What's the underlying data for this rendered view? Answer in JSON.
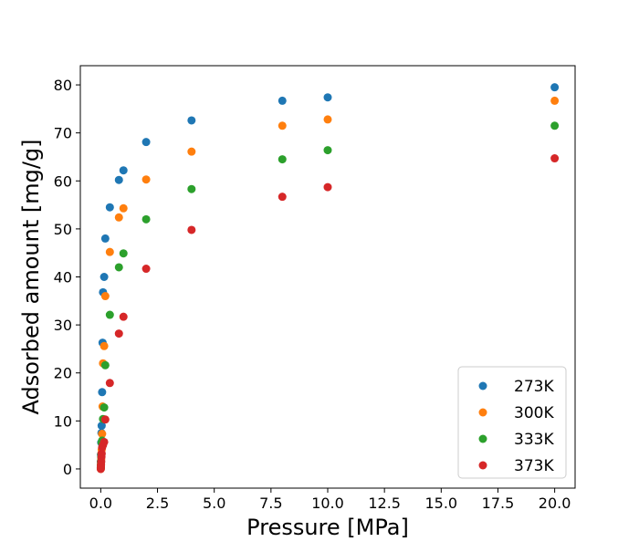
{
  "chart_data": {
    "type": "scatter",
    "xlabel": "Pressure [MPa]",
    "ylabel": "Adsorbed amount [mg/g]",
    "xlim": [
      -0.9,
      20.9
    ],
    "ylim": [
      -4,
      84
    ],
    "xticks": [
      0.0,
      2.5,
      5.0,
      7.5,
      10.0,
      12.5,
      15.0,
      17.5,
      20.0
    ],
    "xtick_labels": [
      "0.0",
      "2.5",
      "5.0",
      "7.5",
      "10.0",
      "12.5",
      "15.0",
      "17.5",
      "20.0"
    ],
    "yticks": [
      0,
      10,
      20,
      30,
      40,
      50,
      60,
      70,
      80
    ],
    "ytick_labels": [
      "0",
      "10",
      "20",
      "30",
      "40",
      "50",
      "60",
      "70",
      "80"
    ],
    "grid": false,
    "legend_position": "bottom-right",
    "series": [
      {
        "name": "273K",
        "color": "#1f77b4",
        "points": [
          [
            0.001,
            0.3
          ],
          [
            0.005,
            1.5
          ],
          [
            0.01,
            3.0
          ],
          [
            0.02,
            5.5
          ],
          [
            0.03,
            7.5
          ],
          [
            0.04,
            9.0
          ],
          [
            0.06,
            16.0
          ],
          [
            0.08,
            26.3
          ],
          [
            0.1,
            36.8
          ],
          [
            0.15,
            40.0
          ],
          [
            0.2,
            48.0
          ],
          [
            0.4,
            54.5
          ],
          [
            0.8,
            60.2
          ],
          [
            1.0,
            62.2
          ],
          [
            2.0,
            68.1
          ],
          [
            4.0,
            72.6
          ],
          [
            8.0,
            76.7
          ],
          [
            10.0,
            77.4
          ],
          [
            20.0,
            79.5
          ]
        ]
      },
      {
        "name": "300K",
        "color": "#ff7f0e",
        "points": [
          [
            0.001,
            0.0
          ],
          [
            0.005,
            0.5
          ],
          [
            0.01,
            1.0
          ],
          [
            0.02,
            2.0
          ],
          [
            0.03,
            3.2
          ],
          [
            0.04,
            4.0
          ],
          [
            0.06,
            7.3
          ],
          [
            0.08,
            13.0
          ],
          [
            0.1,
            22.0
          ],
          [
            0.15,
            25.6
          ],
          [
            0.2,
            36.0
          ],
          [
            0.4,
            45.2
          ],
          [
            0.8,
            52.4
          ],
          [
            1.0,
            54.3
          ],
          [
            2.0,
            60.3
          ],
          [
            4.0,
            66.1
          ],
          [
            8.0,
            71.5
          ],
          [
            10.0,
            72.8
          ],
          [
            20.0,
            76.7
          ]
        ]
      },
      {
        "name": "333K",
        "color": "#2ca02c",
        "points": [
          [
            0.001,
            0.2
          ],
          [
            0.005,
            0.8
          ],
          [
            0.01,
            1.5
          ],
          [
            0.02,
            2.5
          ],
          [
            0.03,
            3.0
          ],
          [
            0.04,
            5.5
          ],
          [
            0.06,
            5.9
          ],
          [
            0.1,
            10.4
          ],
          [
            0.15,
            12.8
          ],
          [
            0.2,
            21.6
          ],
          [
            0.4,
            32.1
          ],
          [
            0.8,
            42.0
          ],
          [
            1.0,
            44.9
          ],
          [
            2.0,
            52.0
          ],
          [
            4.0,
            58.3
          ],
          [
            8.0,
            64.5
          ],
          [
            10.0,
            66.4
          ],
          [
            20.0,
            71.5
          ]
        ]
      },
      {
        "name": "373K",
        "color": "#d62728",
        "points": [
          [
            0.001,
            0.0
          ],
          [
            0.005,
            0.4
          ],
          [
            0.01,
            0.8
          ],
          [
            0.02,
            1.5
          ],
          [
            0.03,
            2.5
          ],
          [
            0.04,
            3.2
          ],
          [
            0.06,
            4.5
          ],
          [
            0.1,
            5.0
          ],
          [
            0.15,
            5.6
          ],
          [
            0.2,
            10.3
          ],
          [
            0.4,
            17.9
          ],
          [
            0.8,
            28.2
          ],
          [
            1.0,
            31.7
          ],
          [
            2.0,
            41.7
          ],
          [
            4.0,
            49.8
          ],
          [
            8.0,
            56.7
          ],
          [
            10.0,
            58.7
          ],
          [
            20.0,
            64.7
          ]
        ]
      }
    ]
  }
}
